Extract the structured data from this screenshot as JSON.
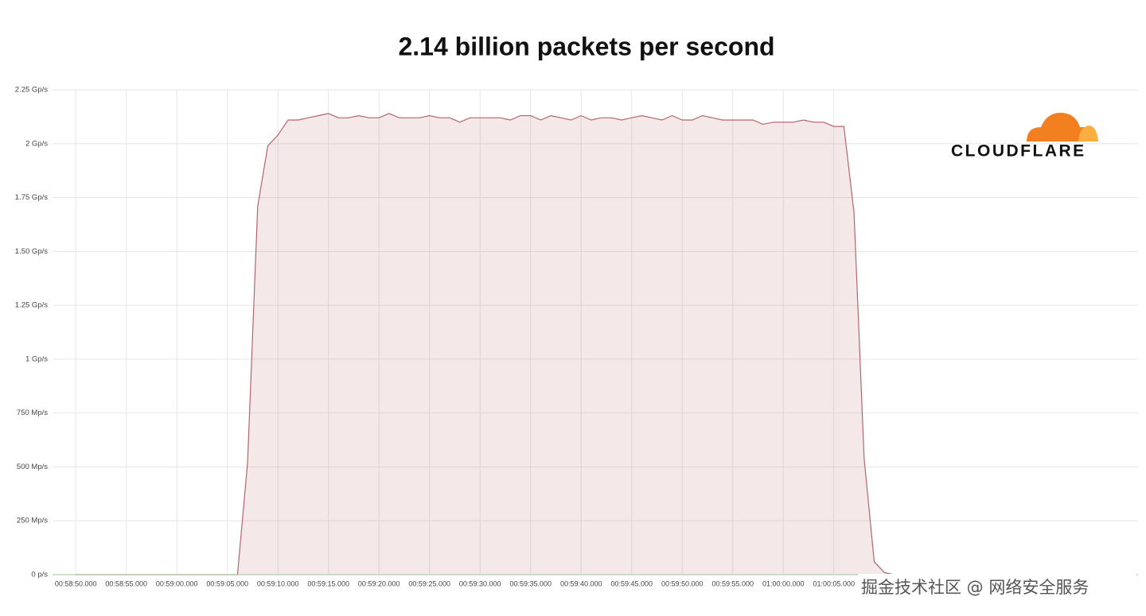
{
  "chart_data": {
    "type": "area",
    "title": "2.14 billion packets per second",
    "x": [
      3530,
      3546,
      3547,
      3548,
      3549,
      3550,
      3551,
      3552,
      3553,
      3554,
      3555,
      3556,
      3557,
      3558,
      3559,
      3560,
      3561,
      3562,
      3563,
      3564,
      3565,
      3566,
      3567,
      3568,
      3569,
      3570,
      3571,
      3572,
      3573,
      3574,
      3575,
      3576,
      3577,
      3578,
      3579,
      3580,
      3581,
      3582,
      3583,
      3584,
      3585,
      3586,
      3587,
      3588,
      3589,
      3590,
      3591,
      3592,
      3593,
      3594,
      3595,
      3596,
      3597,
      3598,
      3599,
      3600,
      3601,
      3602,
      3603,
      3604,
      3605,
      3606,
      3607,
      3608,
      3609,
      3610,
      3611,
      3635
    ],
    "values": [
      0,
      0,
      0.52,
      1.71,
      1.99,
      2.04,
      2.11,
      2.11,
      2.12,
      2.13,
      2.14,
      2.12,
      2.12,
      2.13,
      2.12,
      2.12,
      2.14,
      2.12,
      2.12,
      2.12,
      2.13,
      2.12,
      2.12,
      2.1,
      2.12,
      2.12,
      2.12,
      2.12,
      2.11,
      2.13,
      2.13,
      2.11,
      2.13,
      2.12,
      2.11,
      2.13,
      2.11,
      2.12,
      2.12,
      2.11,
      2.12,
      2.13,
      2.12,
      2.11,
      2.13,
      2.11,
      2.11,
      2.13,
      2.12,
      2.11,
      2.11,
      2.11,
      2.11,
      2.09,
      2.1,
      2.1,
      2.1,
      2.11,
      2.1,
      2.1,
      2.08,
      2.08,
      1.68,
      0.54,
      0.06,
      0.01,
      0,
      0
    ],
    "color": "#b5666b",
    "xlim": [
      3527.7,
      3635.1
    ],
    "xticks": [
      {
        "value": 3530,
        "label": "00:58:50.000"
      },
      {
        "value": 3535,
        "label": "00:58:55.000"
      },
      {
        "value": 3540,
        "label": "00:59:00.000"
      },
      {
        "value": 3545,
        "label": "00:59:05.000"
      },
      {
        "value": 3550,
        "label": "00:59:10.000"
      },
      {
        "value": 3555,
        "label": "00:59:15.000"
      },
      {
        "value": 3560,
        "label": "00:59:20.000"
      },
      {
        "value": 3565,
        "label": "00:59:25.000"
      },
      {
        "value": 3570,
        "label": "00:59:30.000"
      },
      {
        "value": 3575,
        "label": "00:59:35.000"
      },
      {
        "value": 3580,
        "label": "00:59:40.000"
      },
      {
        "value": 3585,
        "label": "00:59:45.000"
      },
      {
        "value": 3590,
        "label": "00:59:50.000"
      },
      {
        "value": 3595,
        "label": "00:59:55.000"
      },
      {
        "value": 3600,
        "label": "01:00:00.000"
      },
      {
        "value": 3605,
        "label": "01:00:05.000"
      }
    ],
    "ylim": [
      0,
      2.25
    ],
    "yticks": [
      {
        "value": 0,
        "label": "0 p/s"
      },
      {
        "value": 0.25,
        "label": "250 Mp/s"
      },
      {
        "value": 0.5,
        "label": "500 Mp/s"
      },
      {
        "value": 0.75,
        "label": "750 Mp/s"
      },
      {
        "value": 1,
        "label": "1 Gp/s"
      },
      {
        "value": 1.25,
        "label": "1.25 Gp/s"
      },
      {
        "value": 1.5,
        "label": "1.50 Gp/s"
      },
      {
        "value": 1.75,
        "label": "1.75 Gp/s"
      },
      {
        "value": 2,
        "label": "2 Gp/s"
      },
      {
        "value": 2.25,
        "label": "2.25 Gp/s"
      }
    ],
    "grid": true
  },
  "logo": "CLOUDFLARE",
  "watermark": "掘金技术社区 @ 网络安全服务"
}
